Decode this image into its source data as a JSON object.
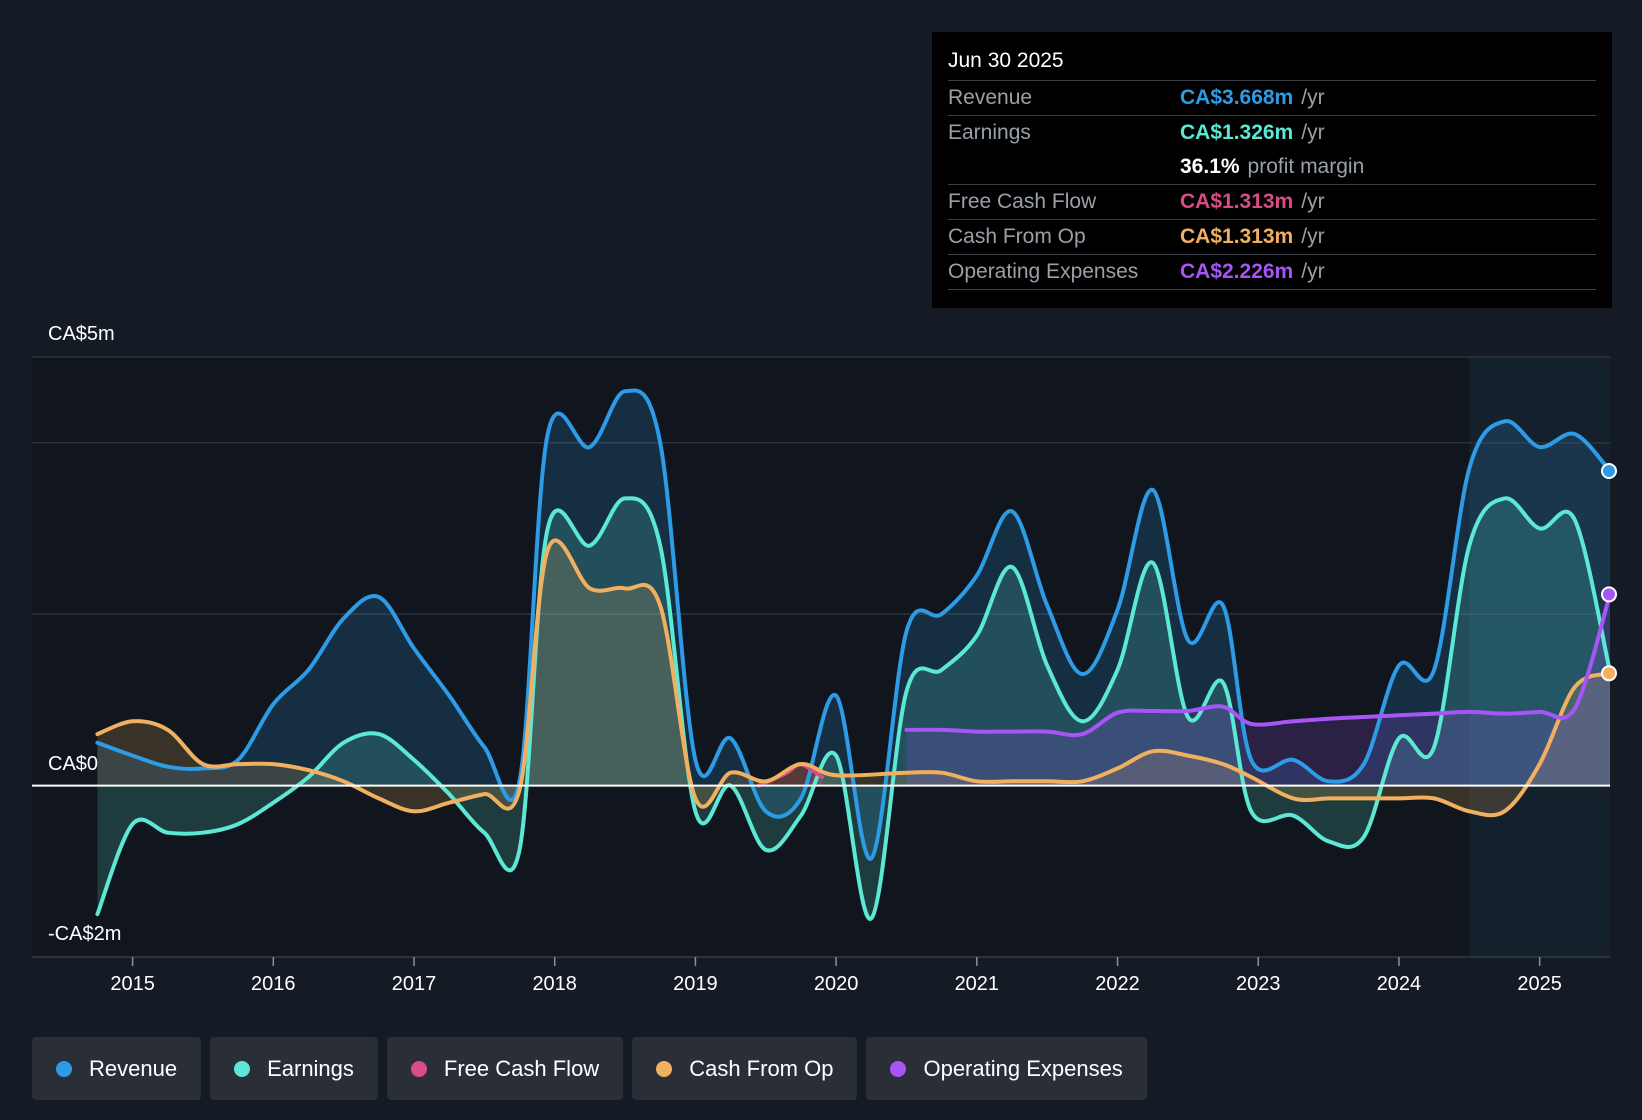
{
  "tooltip": {
    "date": "Jun 30 2025",
    "rows": [
      {
        "label": "Revenue",
        "value": "CA$3.668m",
        "unit": "/yr",
        "color": "#2d9be6"
      },
      {
        "label": "Earnings",
        "value": "CA$1.326m",
        "unit": "/yr",
        "color": "#5ce8d4"
      },
      {
        "label": "",
        "value": "36.1%",
        "unit": "profit margin"
      },
      {
        "label": "Free Cash Flow",
        "value": "CA$1.313m",
        "unit": "/yr",
        "color": "#d94c8a"
      },
      {
        "label": "Cash From Op",
        "value": "CA$1.313m",
        "unit": "/yr",
        "color": "#f0b060"
      },
      {
        "label": "Operating Expenses",
        "value": "CA$2.226m",
        "unit": "/yr",
        "color": "#a855f7"
      }
    ]
  },
  "legend": [
    {
      "label": "Revenue",
      "color": "#2d9be6"
    },
    {
      "label": "Earnings",
      "color": "#5ce8d4"
    },
    {
      "label": "Free Cash Flow",
      "color": "#d94c8a"
    },
    {
      "label": "Cash From Op",
      "color": "#f0b060"
    },
    {
      "label": "Operating Expenses",
      "color": "#a855f7"
    }
  ],
  "chart_data": {
    "type": "area",
    "y_axis_labels": {
      "top": "CA$5m",
      "zero": "CA$0",
      "bottom": "-CA$2m"
    },
    "ylim": [
      -2,
      5
    ],
    "xlim": [
      2014.74,
      2025.5
    ],
    "x_ticks": [
      2015,
      2016,
      2017,
      2018,
      2019,
      2020,
      2021,
      2022,
      2023,
      2024,
      2025
    ],
    "x_tick_labels": [
      "2015",
      "2016",
      "2017",
      "2018",
      "2019",
      "2020",
      "2021",
      "2022",
      "2023",
      "2024",
      "2025"
    ],
    "y_gridlines": [
      5,
      4,
      2,
      0,
      -2
    ],
    "forecast_band_start": 2024.5,
    "series": [
      {
        "name": "Revenue",
        "color": "#2d9be6",
        "points": [
          [
            2014.75,
            0.5
          ],
          [
            2015,
            0.35
          ],
          [
            2015.25,
            0.22
          ],
          [
            2015.5,
            0.2
          ],
          [
            2015.75,
            0.3
          ],
          [
            2016,
            0.95
          ],
          [
            2016.25,
            1.35
          ],
          [
            2016.5,
            1.95
          ],
          [
            2016.75,
            2.2
          ],
          [
            2017,
            1.6
          ],
          [
            2017.25,
            1.05
          ],
          [
            2017.5,
            0.45
          ],
          [
            2017.75,
            0.05
          ],
          [
            2017.95,
            4.1
          ],
          [
            2018.25,
            3.95
          ],
          [
            2018.5,
            4.6
          ],
          [
            2018.75,
            4.0
          ],
          [
            2019,
            0.3
          ],
          [
            2019.25,
            0.55
          ],
          [
            2019.5,
            -0.3
          ],
          [
            2019.75,
            -0.15
          ],
          [
            2020,
            1.05
          ],
          [
            2020.25,
            -0.85
          ],
          [
            2020.5,
            1.8
          ],
          [
            2020.75,
            2.0
          ],
          [
            2021,
            2.45
          ],
          [
            2021.25,
            3.2
          ],
          [
            2021.5,
            2.1
          ],
          [
            2021.75,
            1.3
          ],
          [
            2022,
            2.05
          ],
          [
            2022.25,
            3.45
          ],
          [
            2022.5,
            1.7
          ],
          [
            2022.75,
            2.1
          ],
          [
            2022.95,
            0.3
          ],
          [
            2023.25,
            0.3
          ],
          [
            2023.5,
            0.05
          ],
          [
            2023.75,
            0.25
          ],
          [
            2024,
            1.4
          ],
          [
            2024.25,
            1.35
          ],
          [
            2024.5,
            3.7
          ],
          [
            2024.75,
            4.25
          ],
          [
            2025,
            3.95
          ],
          [
            2025.25,
            4.1
          ],
          [
            2025.5,
            3.67
          ]
        ]
      },
      {
        "name": "Earnings",
        "color": "#5ce8d4",
        "points": [
          [
            2014.75,
            -1.5
          ],
          [
            2015,
            -0.45
          ],
          [
            2015.25,
            -0.55
          ],
          [
            2015.5,
            -0.55
          ],
          [
            2015.75,
            -0.45
          ],
          [
            2016,
            -0.2
          ],
          [
            2016.25,
            0.1
          ],
          [
            2016.5,
            0.5
          ],
          [
            2016.75,
            0.6
          ],
          [
            2017,
            0.3
          ],
          [
            2017.25,
            -0.1
          ],
          [
            2017.5,
            -0.55
          ],
          [
            2017.75,
            -0.75
          ],
          [
            2017.95,
            3.0
          ],
          [
            2018.25,
            2.8
          ],
          [
            2018.5,
            3.35
          ],
          [
            2018.75,
            2.8
          ],
          [
            2019,
            -0.3
          ],
          [
            2019.25,
            0.0
          ],
          [
            2019.5,
            -0.75
          ],
          [
            2019.75,
            -0.35
          ],
          [
            2020,
            0.35
          ],
          [
            2020.25,
            -1.55
          ],
          [
            2020.5,
            1.1
          ],
          [
            2020.75,
            1.35
          ],
          [
            2021,
            1.75
          ],
          [
            2021.25,
            2.55
          ],
          [
            2021.5,
            1.4
          ],
          [
            2021.75,
            0.75
          ],
          [
            2022,
            1.35
          ],
          [
            2022.25,
            2.6
          ],
          [
            2022.5,
            0.8
          ],
          [
            2022.75,
            1.2
          ],
          [
            2022.95,
            -0.3
          ],
          [
            2023.25,
            -0.35
          ],
          [
            2023.5,
            -0.65
          ],
          [
            2023.75,
            -0.6
          ],
          [
            2024,
            0.55
          ],
          [
            2024.25,
            0.45
          ],
          [
            2024.5,
            2.8
          ],
          [
            2024.75,
            3.35
          ],
          [
            2025,
            3.0
          ],
          [
            2025.25,
            3.1
          ],
          [
            2025.5,
            1.33
          ]
        ]
      },
      {
        "name": "Free Cash Flow",
        "color": "#d94c8a",
        "points": [
          [
            2019.45,
            0.0
          ],
          [
            2019.65,
            0.15
          ],
          [
            2019.75,
            0.25
          ],
          [
            2019.9,
            0.1
          ]
        ]
      },
      {
        "name": "Cash From Op",
        "color": "#f0b060",
        "points": [
          [
            2014.75,
            0.6
          ],
          [
            2015,
            0.75
          ],
          [
            2015.25,
            0.65
          ],
          [
            2015.5,
            0.25
          ],
          [
            2015.75,
            0.25
          ],
          [
            2016,
            0.25
          ],
          [
            2016.25,
            0.18
          ],
          [
            2016.5,
            0.05
          ],
          [
            2016.75,
            -0.15
          ],
          [
            2017,
            -0.3
          ],
          [
            2017.25,
            -0.2
          ],
          [
            2017.5,
            -0.1
          ],
          [
            2017.75,
            -0.05
          ],
          [
            2017.95,
            2.75
          ],
          [
            2018.25,
            2.3
          ],
          [
            2018.5,
            2.3
          ],
          [
            2018.75,
            2.1
          ],
          [
            2019,
            -0.15
          ],
          [
            2019.25,
            0.15
          ],
          [
            2019.5,
            0.05
          ],
          [
            2019.75,
            0.25
          ],
          [
            2020,
            0.12
          ],
          [
            2020.5,
            0.15
          ],
          [
            2020.75,
            0.15
          ],
          [
            2021,
            0.05
          ],
          [
            2021.25,
            0.05
          ],
          [
            2021.5,
            0.05
          ],
          [
            2021.75,
            0.05
          ],
          [
            2022,
            0.2
          ],
          [
            2022.25,
            0.4
          ],
          [
            2022.5,
            0.35
          ],
          [
            2022.75,
            0.25
          ],
          [
            2022.95,
            0.1
          ],
          [
            2023.25,
            -0.15
          ],
          [
            2023.5,
            -0.15
          ],
          [
            2023.75,
            -0.15
          ],
          [
            2024,
            -0.15
          ],
          [
            2024.25,
            -0.15
          ],
          [
            2024.5,
            -0.3
          ],
          [
            2024.75,
            -0.3
          ],
          [
            2025,
            0.25
          ],
          [
            2025.25,
            1.15
          ],
          [
            2025.5,
            1.31
          ]
        ]
      },
      {
        "name": "Operating Expenses",
        "color": "#a855f7",
        "points": [
          [
            2020.5,
            0.65
          ],
          [
            2020.75,
            0.65
          ],
          [
            2021,
            0.63
          ],
          [
            2021.25,
            0.63
          ],
          [
            2021.5,
            0.63
          ],
          [
            2021.75,
            0.6
          ],
          [
            2022,
            0.85
          ],
          [
            2022.25,
            0.87
          ],
          [
            2022.5,
            0.87
          ],
          [
            2022.75,
            0.92
          ],
          [
            2022.95,
            0.72
          ],
          [
            2023.25,
            0.75
          ],
          [
            2023.5,
            0.78
          ],
          [
            2023.75,
            0.8
          ],
          [
            2024,
            0.82
          ],
          [
            2024.25,
            0.84
          ],
          [
            2024.5,
            0.86
          ],
          [
            2024.75,
            0.84
          ],
          [
            2025,
            0.86
          ],
          [
            2025.25,
            0.9
          ],
          [
            2025.5,
            2.23
          ]
        ]
      }
    ]
  }
}
